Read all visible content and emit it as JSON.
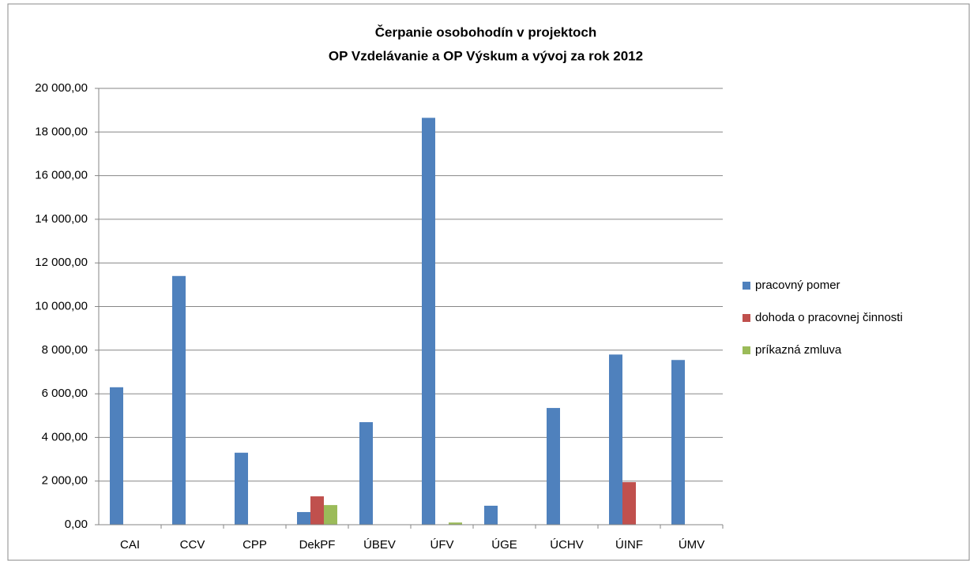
{
  "chart_data": {
    "type": "bar",
    "title": [
      "Čerpanie osobohodín  v projektoch",
      "OP Vzdelávanie a OP Výskum a vývoj za rok 2012"
    ],
    "categories": [
      "CAI",
      "CCV",
      "CPP",
      "DekPF",
      "ÚBEV",
      "ÚFV",
      "ÚGE",
      "ÚCHV",
      "ÚINF",
      "ÚMV"
    ],
    "series": [
      {
        "name": "pracovný pomer",
        "color": "#4f81bd",
        "values": [
          6300,
          11400,
          3300,
          580,
          4700,
          18650,
          870,
          5350,
          7800,
          7550
        ]
      },
      {
        "name": "dohoda o pracovnej činnosti",
        "color": "#c0504d",
        "values": [
          0,
          0,
          0,
          1300,
          0,
          0,
          0,
          0,
          1950,
          0
        ]
      },
      {
        "name": "príkazná zmluva",
        "color": "#9bbb59",
        "values": [
          0,
          0,
          0,
          900,
          0,
          100,
          0,
          0,
          0,
          0
        ]
      }
    ],
    "ylim": [
      0,
      20000
    ],
    "yticks": [
      {
        "value": 0,
        "label": "0,00"
      },
      {
        "value": 2000,
        "label": "2 000,00"
      },
      {
        "value": 4000,
        "label": "4 000,00"
      },
      {
        "value": 6000,
        "label": "6 000,00"
      },
      {
        "value": 8000,
        "label": "8 000,00"
      },
      {
        "value": 10000,
        "label": "10 000,00"
      },
      {
        "value": 12000,
        "label": "12 000,00"
      },
      {
        "value": 14000,
        "label": "14 000,00"
      },
      {
        "value": 16000,
        "label": "16 000,00"
      },
      {
        "value": 18000,
        "label": "18 000,00"
      },
      {
        "value": 20000,
        "label": "20 000,00"
      }
    ],
    "grid": true,
    "legend": "right"
  }
}
